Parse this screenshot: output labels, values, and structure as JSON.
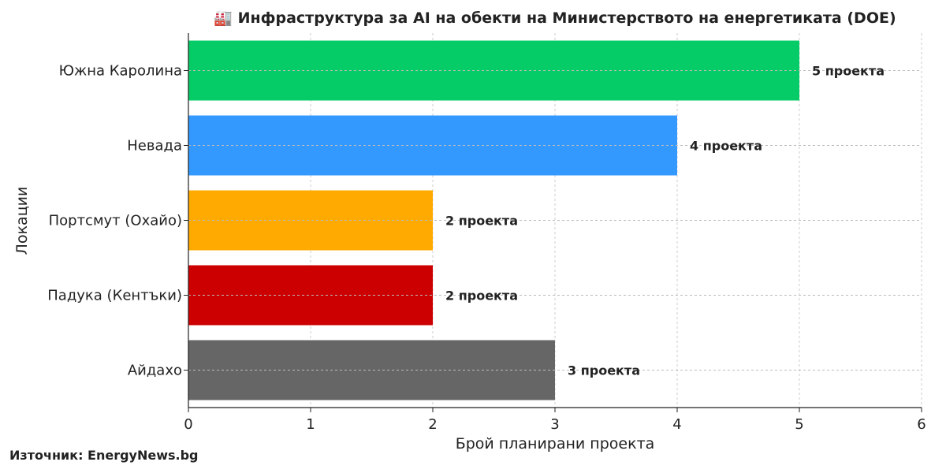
{
  "chart_data": {
    "type": "bar",
    "orientation": "horizontal",
    "title": "🏭 Инфраструктура за AI на обекти на Министерството на енергетиката (DOE)",
    "xlabel": "Брой планирани проекта",
    "ylabel": "Локации",
    "xlim": [
      0,
      6
    ],
    "xticks": [
      0,
      1,
      2,
      3,
      4,
      5,
      6
    ],
    "grid": true,
    "categories": [
      "Южна Каролина",
      "Невада",
      "Портсмут (Охайо)",
      "Падука (Кентъки)",
      "Айдахо"
    ],
    "values": [
      5,
      4,
      2,
      2,
      3
    ],
    "data_labels": [
      "5 проекта",
      "4 проекта",
      "2 проекта",
      "2 проекта",
      "3 проекта"
    ],
    "colors": [
      "#05cc66",
      "#3399ff",
      "#ffaa00",
      "#cc0000",
      "#666666"
    ]
  },
  "source": "Източник: EnergyNews.bg"
}
